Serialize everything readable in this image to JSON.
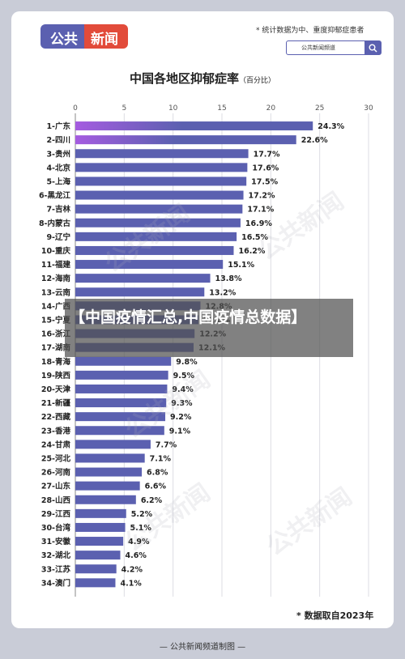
{
  "header": {
    "logo_part1": "公共",
    "logo_part2": "新闻",
    "note": "* 统计数据为中、重度抑郁症患者",
    "search_text": "公共新闻频道"
  },
  "overlay_text": "【中国疫情汇总,中国疫情总数据】",
  "watermark": "公共新闻",
  "source_note": "* 数据取自2023年",
  "footer": "— 公共新闻频道制图 —",
  "colors": {
    "bar": "#5b60b0",
    "top_bar_gradient_start": "#a55ce0",
    "logo_blue": "#5b60b0",
    "logo_red": "#e24b3a",
    "background": "#c9ccd7"
  },
  "chart_data": {
    "type": "bar",
    "orientation": "horizontal",
    "title": "中国各地区抑郁症率",
    "unit_label": "（百分比）",
    "xlim": [
      0,
      30
    ],
    "x_ticks": [
      0,
      5,
      10,
      15,
      20,
      25,
      30
    ],
    "grid": true,
    "categories": [
      "1-广东",
      "2-四川",
      "3-贵州",
      "4-北京",
      "5-上海",
      "6-黑龙江",
      "7-吉林",
      "8-内蒙古",
      "9-辽宁",
      "10-重庆",
      "11-福建",
      "12-海南",
      "13-云南",
      "14-广西",
      "15-宁夏",
      "16-浙江",
      "17-湖南",
      "18-青海",
      "19-陕西",
      "20-天津",
      "21-新疆",
      "22-西藏",
      "23-香港",
      "24-甘肃",
      "25-河北",
      "26-河南",
      "27-山东",
      "28-山西",
      "29-江西",
      "30-台湾",
      "31-安徽",
      "32-湖北",
      "33-江苏",
      "34-澳门"
    ],
    "values": [
      24.3,
      22.6,
      17.7,
      17.6,
      17.5,
      17.2,
      17.1,
      16.9,
      16.5,
      16.2,
      15.1,
      13.8,
      13.2,
      12.8,
      12.6,
      12.2,
      12.1,
      9.8,
      9.5,
      9.4,
      9.3,
      9.2,
      9.1,
      7.7,
      7.1,
      6.8,
      6.6,
      6.2,
      5.2,
      5.1,
      4.9,
      4.6,
      4.2,
      4.1
    ],
    "value_labels": [
      "24.3%",
      "22.6%",
      "17.7%",
      "17.6%",
      "17.5%",
      "17.2%",
      "17.1%",
      "16.9%",
      "16.5%",
      "16.2%",
      "15.1%",
      "13.8%",
      "13.2%",
      "12.8%",
      "12.6%",
      "12.2%",
      "12.1%",
      "9.8%",
      "9.5%",
      "9.4%",
      "9.3%",
      "9.2%",
      "9.1%",
      "7.7%",
      "7.1%",
      "6.8%",
      "6.6%",
      "6.2%",
      "5.2%",
      "5.1%",
      "4.9%",
      "4.6%",
      "4.2%",
      "4.1%"
    ]
  }
}
